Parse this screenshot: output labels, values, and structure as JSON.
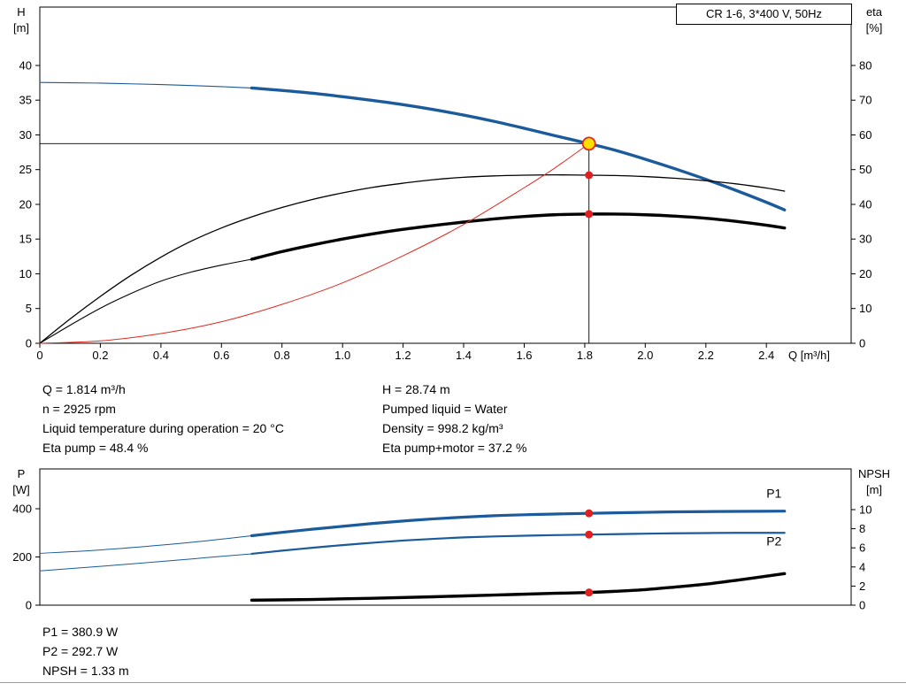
{
  "title_box": {
    "label": "CR 1-6, 3*400 V, 50Hz"
  },
  "info_top": {
    "left": [
      "Q = 1.814 m³/h",
      "n = 2925 rpm",
      "Liquid temperature during operation = 20 °C",
      "Eta pump = 48.4 %"
    ],
    "right": [
      "H = 28.74 m",
      "Pumped liquid = Water",
      "Density = 998.2 kg/m³",
      "Eta pump+motor = 37.2 %"
    ]
  },
  "info_bottom": [
    "P1 = 380.9 W",
    "P2 = 292.7 W",
    "NPSH = 1.33 m"
  ],
  "colors": {
    "curve_blue": "#1b5a9b",
    "curve_black": "#000000",
    "curve_red": "#e02a20",
    "duty_fill": "#ffdf00",
    "marker_red": "#e02020"
  },
  "chart_data": [
    {
      "id": "head",
      "type": "line",
      "title": "CR 1-6, 3*400 V, 50Hz",
      "x_axis": {
        "label": "Q [m³/h]",
        "lim": [
          0,
          2.68
        ],
        "ticks": [
          "0",
          "0.2",
          "0.4",
          "0.6",
          "0.8",
          "1.0",
          "1.2",
          "1.4",
          "1.6",
          "1.8",
          "2.0",
          "2.2",
          "2.4"
        ]
      },
      "y_left": {
        "label": [
          "H",
          "[m]"
        ],
        "lim": [
          0,
          48.4
        ],
        "ticks": [
          "0",
          "5",
          "10",
          "15",
          "20",
          "25",
          "30",
          "35",
          "40"
        ]
      },
      "y_right": {
        "label": [
          "eta",
          "[%]"
        ],
        "lim": [
          0,
          96.8
        ],
        "ticks": [
          "0",
          "10",
          "20",
          "30",
          "40",
          "50",
          "60",
          "70",
          "80"
        ]
      },
      "duty_point": {
        "q": 1.814,
        "h": 28.74,
        "eta_pump": 48.4,
        "eta_pump_motor": 37.2
      },
      "series": [
        {
          "name": "pump-curve-thin",
          "axis": "left",
          "color": "curve_blue",
          "width": 1.1,
          "points": [
            [
              0,
              37.55
            ],
            [
              0.1,
              37.5
            ],
            [
              0.2,
              37.45
            ],
            [
              0.3,
              37.35
            ],
            [
              0.4,
              37.25
            ],
            [
              0.5,
              37.1
            ],
            [
              0.6,
              36.95
            ],
            [
              0.72,
              36.7
            ]
          ]
        },
        {
          "name": "pump-curve",
          "axis": "left",
          "color": "curve_blue",
          "width": 3.4,
          "points": [
            [
              0.7,
              36.75
            ],
            [
              0.8,
              36.4
            ],
            [
              0.9,
              36.0
            ],
            [
              1.0,
              35.5
            ],
            [
              1.1,
              34.95
            ],
            [
              1.2,
              34.35
            ],
            [
              1.3,
              33.65
            ],
            [
              1.4,
              32.85
            ],
            [
              1.5,
              31.95
            ],
            [
              1.6,
              30.95
            ],
            [
              1.7,
              29.9
            ],
            [
              1.814,
              28.74
            ],
            [
              1.9,
              27.8
            ],
            [
              2.0,
              26.5
            ],
            [
              2.1,
              25.1
            ],
            [
              2.2,
              23.6
            ],
            [
              2.3,
              22.0
            ],
            [
              2.4,
              20.3
            ],
            [
              2.46,
              19.2
            ]
          ]
        },
        {
          "name": "eta-pump-curve",
          "axis": "right",
          "color": "curve_black",
          "width": 1.3,
          "points": [
            [
              0,
              0
            ],
            [
              0.1,
              7.0
            ],
            [
              0.2,
              13.5
            ],
            [
              0.3,
              19.5
            ],
            [
              0.4,
              24.8
            ],
            [
              0.5,
              29.4
            ],
            [
              0.6,
              33.2
            ],
            [
              0.7,
              36.4
            ],
            [
              0.8,
              39.1
            ],
            [
              0.9,
              41.4
            ],
            [
              1.0,
              43.3
            ],
            [
              1.1,
              44.9
            ],
            [
              1.2,
              46.1
            ],
            [
              1.3,
              47.1
            ],
            [
              1.4,
              47.8
            ],
            [
              1.5,
              48.2
            ],
            [
              1.6,
              48.4
            ],
            [
              1.7,
              48.5
            ],
            [
              1.814,
              48.4
            ],
            [
              1.9,
              48.3
            ],
            [
              2.0,
              48.0
            ],
            [
              2.1,
              47.5
            ],
            [
              2.2,
              46.8
            ],
            [
              2.3,
              45.9
            ],
            [
              2.4,
              44.7
            ],
            [
              2.46,
              43.8
            ]
          ]
        },
        {
          "name": "eta-pump-motor-curve-thin",
          "axis": "right",
          "color": "curve_black",
          "width": 1.1,
          "points": [
            [
              0,
              0
            ],
            [
              0.1,
              5.2
            ],
            [
              0.2,
              10.1
            ],
            [
              0.3,
              14.3
            ],
            [
              0.4,
              17.9
            ],
            [
              0.5,
              20.5
            ],
            [
              0.6,
              22.5
            ],
            [
              0.7,
              24.2
            ]
          ]
        },
        {
          "name": "eta-pump-motor-curve",
          "axis": "right",
          "color": "curve_black",
          "width": 3.4,
          "points": [
            [
              0.7,
              24.2
            ],
            [
              0.8,
              26.4
            ],
            [
              0.9,
              28.3
            ],
            [
              1.0,
              30.0
            ],
            [
              1.1,
              31.5
            ],
            [
              1.2,
              32.8
            ],
            [
              1.3,
              33.9
            ],
            [
              1.4,
              34.9
            ],
            [
              1.5,
              35.8
            ],
            [
              1.6,
              36.5
            ],
            [
              1.7,
              37.0
            ],
            [
              1.814,
              37.2
            ],
            [
              1.9,
              37.2
            ],
            [
              2.0,
              37.0
            ],
            [
              2.1,
              36.6
            ],
            [
              2.2,
              36.0
            ],
            [
              2.3,
              35.1
            ],
            [
              2.4,
              34.0
            ],
            [
              2.46,
              33.2
            ]
          ]
        },
        {
          "name": "system-curve",
          "axis": "left",
          "color": "curve_red",
          "width": 1,
          "points": [
            [
              0,
              0
            ],
            [
              0.2,
              0.35
            ],
            [
              0.4,
              1.4
            ],
            [
              0.6,
              3.1
            ],
            [
              0.8,
              5.6
            ],
            [
              1.0,
              8.7
            ],
            [
              1.2,
              12.6
            ],
            [
              1.4,
              17.1
            ],
            [
              1.6,
              22.4
            ],
            [
              1.7,
              25.2
            ],
            [
              1.814,
              28.74
            ]
          ]
        }
      ],
      "guides": [
        {
          "type": "hline",
          "name": "duty-head-line",
          "axis": "left",
          "y": 28.74,
          "x1": 0,
          "x2": 1.814
        },
        {
          "type": "vline",
          "name": "duty-flow-line",
          "axis": "left",
          "x": 1.814,
          "y1": 0,
          "y2": 28.74
        }
      ],
      "markers": [
        {
          "name": "duty-point",
          "x": 1.814,
          "y": 28.74,
          "axis": "left",
          "r": 7,
          "fill": "duty_fill",
          "stroke": "curve_red",
          "interactable": true
        },
        {
          "name": "eta-pump-operating-dot",
          "x": 1.814,
          "y": 48.4,
          "axis": "right",
          "r": 4.5,
          "fill": "marker_red"
        },
        {
          "name": "eta-pump-motor-operating-dot",
          "x": 1.814,
          "y": 37.2,
          "axis": "right",
          "r": 4.5,
          "fill": "marker_red"
        }
      ]
    },
    {
      "id": "power",
      "type": "line",
      "x_axis": {
        "label": "",
        "lim": [
          0,
          2.68
        ],
        "ticks": []
      },
      "y_left": {
        "label": [
          "P",
          "[W]"
        ],
        "lim": [
          0,
          565
        ],
        "ticks": [
          "0",
          "200",
          "400"
        ]
      },
      "y_right": {
        "label": [
          "NPSH",
          "[m]"
        ],
        "lim": [
          0,
          14.26
        ],
        "ticks": [
          "0",
          "2",
          "4",
          "6",
          "8",
          "10"
        ]
      },
      "duty_point": {
        "q": 1.814,
        "p1": 380.9,
        "p2": 292.7,
        "npsh": 1.33
      },
      "series": [
        {
          "name": "p1-curve-thin",
          "axis": "left",
          "color": "curve_blue",
          "width": 1,
          "points": [
            [
              0,
              215
            ],
            [
              0.2,
              229
            ],
            [
              0.4,
              249
            ],
            [
              0.55,
              267
            ],
            [
              0.7,
              288
            ]
          ]
        },
        {
          "name": "p1-curve",
          "axis": "left",
          "color": "curve_blue",
          "width": 3.2,
          "points": [
            [
              0.7,
              288
            ],
            [
              0.8,
              302
            ],
            [
              0.9,
              315
            ],
            [
              1.0,
              327
            ],
            [
              1.1,
              339
            ],
            [
              1.2,
              349
            ],
            [
              1.3,
              358
            ],
            [
              1.4,
              365
            ],
            [
              1.5,
              371
            ],
            [
              1.6,
              375
            ],
            [
              1.7,
              378
            ],
            [
              1.814,
              380.9
            ],
            [
              1.9,
              383
            ],
            [
              2.0,
              385
            ],
            [
              2.1,
              387
            ],
            [
              2.2,
              388
            ],
            [
              2.3,
              389
            ],
            [
              2.46,
              390
            ]
          ]
        },
        {
          "name": "p2-curve-thin",
          "axis": "left",
          "color": "curve_blue",
          "width": 1,
          "points": [
            [
              0,
              142
            ],
            [
              0.2,
              161
            ],
            [
              0.4,
              181
            ],
            [
              0.55,
              197
            ],
            [
              0.7,
              213
            ]
          ]
        },
        {
          "name": "p2-curve",
          "axis": "left",
          "color": "curve_blue",
          "width": 2.2,
          "points": [
            [
              0.7,
              213
            ],
            [
              0.8,
              226
            ],
            [
              0.9,
              238
            ],
            [
              1.0,
              249
            ],
            [
              1.1,
              259
            ],
            [
              1.2,
              268
            ],
            [
              1.3,
              275
            ],
            [
              1.4,
              281
            ],
            [
              1.5,
              285
            ],
            [
              1.6,
              288
            ],
            [
              1.7,
              290.5
            ],
            [
              1.814,
              292.7
            ],
            [
              1.9,
              294.5
            ],
            [
              2.0,
              296.5
            ],
            [
              2.1,
              298
            ],
            [
              2.2,
              299
            ],
            [
              2.3,
              300
            ],
            [
              2.46,
              300
            ]
          ]
        },
        {
          "name": "npsh-curve",
          "axis": "right",
          "color": "curve_black",
          "width": 3.4,
          "points": [
            [
              0.7,
              0.52
            ],
            [
              0.9,
              0.6
            ],
            [
              1.1,
              0.72
            ],
            [
              1.3,
              0.88
            ],
            [
              1.5,
              1.06
            ],
            [
              1.7,
              1.24
            ],
            [
              1.814,
              1.33
            ],
            [
              1.9,
              1.45
            ],
            [
              2.0,
              1.63
            ],
            [
              2.1,
              1.9
            ],
            [
              2.2,
              2.2
            ],
            [
              2.3,
              2.6
            ],
            [
              2.46,
              3.3
            ]
          ]
        }
      ],
      "labels": [
        {
          "text": "P1",
          "x": 2.4,
          "y": 445,
          "axis": "left",
          "color": "curve_blue"
        },
        {
          "text": "P2",
          "x": 2.4,
          "y": 248,
          "axis": "left",
          "color": "curve_blue"
        }
      ],
      "markers": [
        {
          "name": "p1-operating-dot",
          "x": 1.814,
          "y": 380.9,
          "axis": "left",
          "r": 4.5,
          "fill": "marker_red"
        },
        {
          "name": "p2-operating-dot",
          "x": 1.814,
          "y": 292.7,
          "axis": "left",
          "r": 4.5,
          "fill": "marker_red"
        },
        {
          "name": "npsh-operating-dot",
          "x": 1.814,
          "y": 1.33,
          "axis": "right",
          "r": 4.5,
          "fill": "marker_red"
        }
      ]
    }
  ]
}
